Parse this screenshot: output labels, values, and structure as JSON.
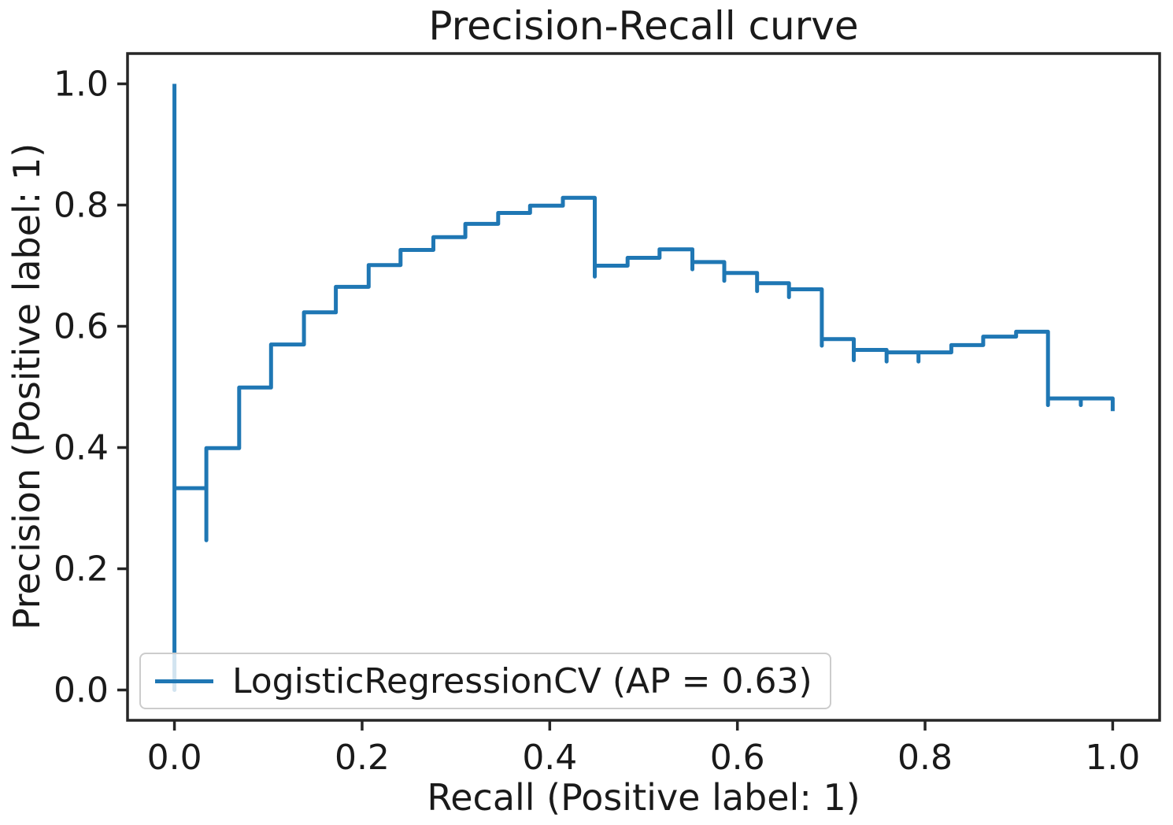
{
  "colors": {
    "curve": "#1f77b4",
    "axis": "#262626",
    "text": "#1a1a1a",
    "legend_border": "#cccccc",
    "legend_bg": "rgba(255,255,255,0.8)"
  },
  "chart_data": {
    "type": "line",
    "title": "Precision-Recall curve",
    "xlabel": "Recall (Positive label: 1)",
    "ylabel": "Precision (Positive label: 1)",
    "xlim": [
      -0.05,
      1.05
    ],
    "ylim": [
      -0.05,
      1.05
    ],
    "xticks": [
      0.0,
      0.2,
      0.4,
      0.6,
      0.8,
      1.0
    ],
    "yticks": [
      0.0,
      0.2,
      0.4,
      0.6,
      0.8,
      1.0
    ],
    "xtick_labels": [
      "0.0",
      "0.2",
      "0.4",
      "0.6",
      "0.8",
      "1.0"
    ],
    "ytick_labels": [
      "0.0",
      "0.2",
      "0.4",
      "0.6",
      "0.8",
      "1.0"
    ],
    "grid": false,
    "legend_position": "lower left",
    "series": [
      {
        "name": "LogisticRegressionCV (AP = 0.63)",
        "average_precision": 0.63,
        "drawstyle": "steps",
        "color": "#1f77b4",
        "points_recall_precision": [
          [
            1.0,
            0.46
          ],
          [
            1.0,
            0.481
          ],
          [
            0.966,
            0.481
          ],
          [
            0.966,
            0.47
          ],
          [
            0.966,
            0.481
          ],
          [
            0.931,
            0.481
          ],
          [
            0.931,
            0.47
          ],
          [
            0.931,
            0.591
          ],
          [
            0.897,
            0.591
          ],
          [
            0.897,
            0.583
          ],
          [
            0.862,
            0.583
          ],
          [
            0.862,
            0.569
          ],
          [
            0.828,
            0.569
          ],
          [
            0.828,
            0.557
          ],
          [
            0.793,
            0.557
          ],
          [
            0.793,
            0.542
          ],
          [
            0.793,
            0.557
          ],
          [
            0.759,
            0.557
          ],
          [
            0.759,
            0.542
          ],
          [
            0.759,
            0.561
          ],
          [
            0.724,
            0.561
          ],
          [
            0.724,
            0.544
          ],
          [
            0.724,
            0.579
          ],
          [
            0.69,
            0.579
          ],
          [
            0.69,
            0.568
          ],
          [
            0.69,
            0.661
          ],
          [
            0.655,
            0.661
          ],
          [
            0.655,
            0.648
          ],
          [
            0.655,
            0.671
          ],
          [
            0.621,
            0.671
          ],
          [
            0.621,
            0.658
          ],
          [
            0.621,
            0.688
          ],
          [
            0.586,
            0.688
          ],
          [
            0.586,
            0.675
          ],
          [
            0.586,
            0.706
          ],
          [
            0.552,
            0.706
          ],
          [
            0.552,
            0.694
          ],
          [
            0.552,
            0.727
          ],
          [
            0.517,
            0.727
          ],
          [
            0.517,
            0.713
          ],
          [
            0.483,
            0.713
          ],
          [
            0.483,
            0.7
          ],
          [
            0.448,
            0.7
          ],
          [
            0.448,
            0.682
          ],
          [
            0.448,
            0.812
          ],
          [
            0.414,
            0.812
          ],
          [
            0.414,
            0.799
          ],
          [
            0.379,
            0.799
          ],
          [
            0.379,
            0.787
          ],
          [
            0.345,
            0.787
          ],
          [
            0.345,
            0.769
          ],
          [
            0.31,
            0.769
          ],
          [
            0.31,
            0.747
          ],
          [
            0.276,
            0.747
          ],
          [
            0.276,
            0.726
          ],
          [
            0.241,
            0.726
          ],
          [
            0.241,
            0.701
          ],
          [
            0.207,
            0.701
          ],
          [
            0.207,
            0.665
          ],
          [
            0.172,
            0.665
          ],
          [
            0.172,
            0.623
          ],
          [
            0.138,
            0.623
          ],
          [
            0.138,
            0.57
          ],
          [
            0.103,
            0.57
          ],
          [
            0.103,
            0.499
          ],
          [
            0.069,
            0.499
          ],
          [
            0.069,
            0.399
          ],
          [
            0.034,
            0.399
          ],
          [
            0.034,
            0.247
          ],
          [
            0.034,
            0.333
          ],
          [
            0.0,
            0.333
          ],
          [
            0.0,
            0.0
          ],
          [
            0.0,
            1.0
          ]
        ]
      }
    ]
  }
}
